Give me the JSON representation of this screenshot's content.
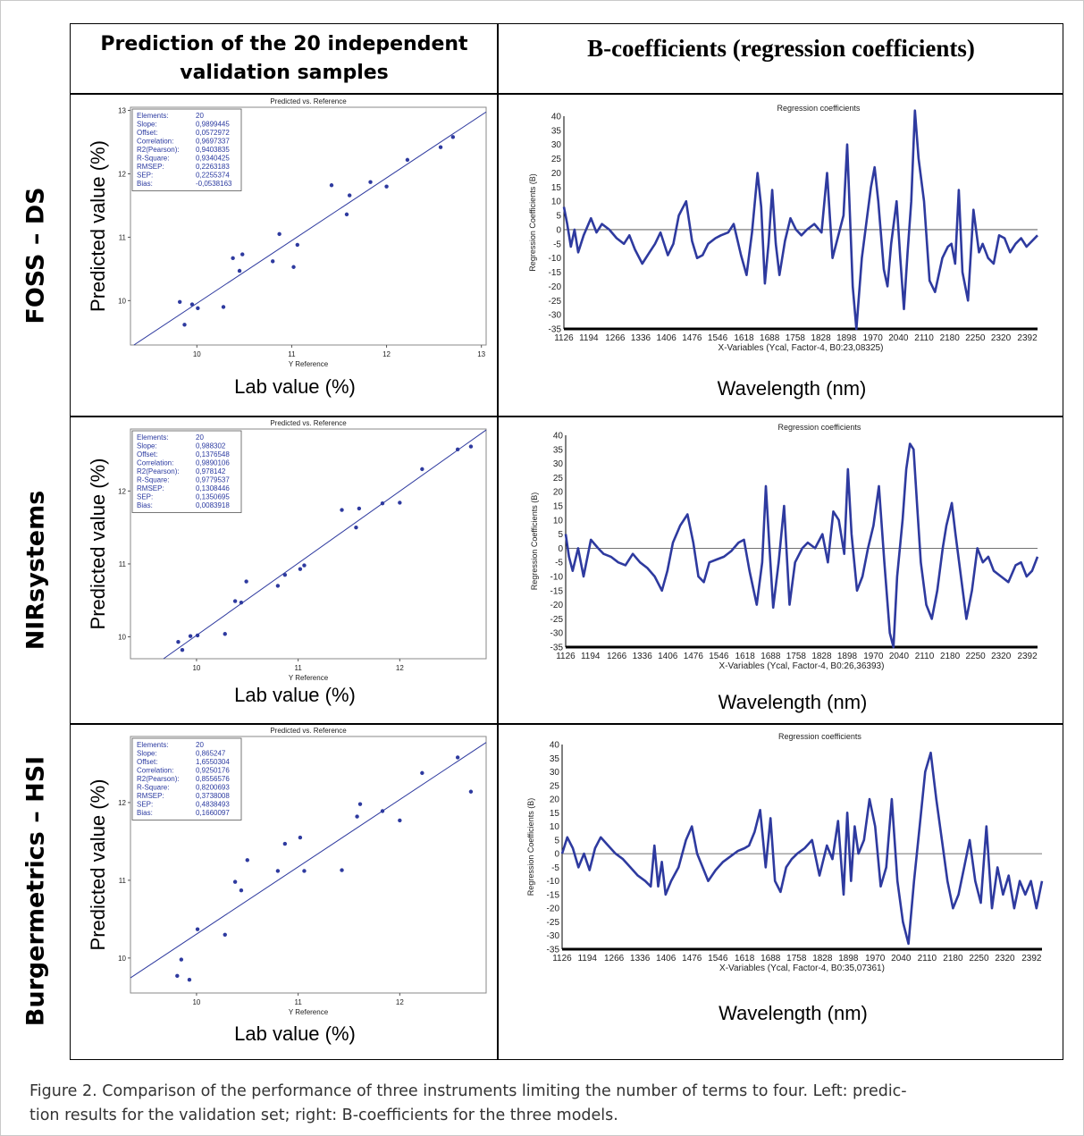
{
  "headers": {
    "left_line1": "Prediction of the 20 independent",
    "left_line2": "validation samples",
    "right": "B-coefficients (regression coefficients)"
  },
  "row_labels": [
    "FOSS – DS",
    "NIRsystems",
    "Burgermetrics – HSI"
  ],
  "caption": {
    "line1": "Figure 2. Comparison of the performance of three instruments limiting the number of terms to four. Left: predic-",
    "line2": "tion results for the validation set; right: B-coefficients for the three models."
  },
  "colors": {
    "series": "#2e3a9f",
    "stats_text": "#2b3aa0",
    "axis": "#000000",
    "frame": "#c9c9c9"
  },
  "chart_data": [
    {
      "type": "scatter",
      "instrument": "FOSS – DS",
      "title": "Predicted vs. Reference",
      "xlabel": "Y Reference",
      "ylabel": "Predicted value (%)",
      "outer_xlabel": "Lab value (%)",
      "xlim": [
        9.3,
        13.05
      ],
      "ylim": [
        9.3,
        13.05
      ],
      "xticks": [
        10,
        11,
        12,
        13
      ],
      "yticks": [
        10,
        11,
        12,
        13
      ],
      "fit_line": {
        "slope": 0.9899445,
        "offset": 0.0572972
      },
      "stats": [
        [
          "Elements:",
          "20"
        ],
        [
          "Slope:",
          "0,9899445"
        ],
        [
          "Offset:",
          "0,0572972"
        ],
        [
          "Correlation:",
          "0,9697337"
        ],
        [
          "R2(Pearson):",
          "0,9403835"
        ],
        [
          "R-Square:",
          "0,9340425"
        ],
        [
          "RMSEP:",
          "0,2263183"
        ],
        [
          "SEP:",
          "0,2255374"
        ],
        [
          "Bias:",
          "-0,0538163"
        ]
      ],
      "points": [
        [
          9.82,
          9.98
        ],
        [
          9.87,
          9.62
        ],
        [
          9.95,
          9.94
        ],
        [
          10.01,
          9.88
        ],
        [
          10.28,
          9.9
        ],
        [
          10.38,
          10.67
        ],
        [
          10.45,
          10.47
        ],
        [
          10.48,
          10.73
        ],
        [
          10.8,
          10.62
        ],
        [
          10.87,
          11.05
        ],
        [
          11.02,
          10.53
        ],
        [
          11.06,
          10.88
        ],
        [
          11.42,
          11.82
        ],
        [
          11.58,
          11.36
        ],
        [
          11.61,
          11.66
        ],
        [
          11.83,
          11.87
        ],
        [
          12.0,
          11.8
        ],
        [
          12.22,
          12.22
        ],
        [
          12.57,
          12.42
        ],
        [
          12.7,
          12.58
        ]
      ]
    },
    {
      "type": "scatter",
      "instrument": "NIRsystems",
      "title": "Predicted vs. Reference",
      "xlabel": "Y Reference",
      "ylabel": "Predicted value (%)",
      "outer_xlabel": "Lab value (%)",
      "xlim": [
        9.35,
        12.85
      ],
      "ylim": [
        9.7,
        12.85
      ],
      "xticks": [
        10,
        11,
        12
      ],
      "yticks": [
        10,
        11,
        12
      ],
      "fit_line": {
        "slope": 0.988302,
        "offset": 0.1376548
      },
      "stats": [
        [
          "Elements:",
          "20"
        ],
        [
          "Slope:",
          "0,988302"
        ],
        [
          "Offset:",
          "0,1376548"
        ],
        [
          "Correlation:",
          "0,9890106"
        ],
        [
          "R2(Pearson):",
          "0,978142"
        ],
        [
          "R-Square:",
          "0,9779537"
        ],
        [
          "RMSEP:",
          "0,1308446"
        ],
        [
          "SEP:",
          "0,1350695"
        ],
        [
          "Bias:",
          "0,0083918"
        ]
      ],
      "points": [
        [
          9.82,
          9.93
        ],
        [
          9.86,
          9.82
        ],
        [
          9.94,
          10.01
        ],
        [
          10.01,
          10.02
        ],
        [
          10.28,
          10.04
        ],
        [
          10.38,
          10.49
        ],
        [
          10.44,
          10.47
        ],
        [
          10.49,
          10.76
        ],
        [
          10.8,
          10.7
        ],
        [
          10.87,
          10.85
        ],
        [
          11.02,
          10.93
        ],
        [
          11.06,
          10.98
        ],
        [
          11.43,
          11.74
        ],
        [
          11.57,
          11.5
        ],
        [
          11.6,
          11.76
        ],
        [
          11.83,
          11.83
        ],
        [
          12.0,
          11.84
        ],
        [
          12.22,
          12.3
        ],
        [
          12.57,
          12.57
        ],
        [
          12.7,
          12.61
        ]
      ]
    },
    {
      "type": "scatter",
      "instrument": "Burgermetrics – HSI",
      "title": "Predicted vs. Reference",
      "xlabel": "Y Reference",
      "ylabel": "Predicted value (%)",
      "outer_xlabel": "Lab value (%)",
      "xlim": [
        9.35,
        12.85
      ],
      "ylim": [
        9.55,
        12.85
      ],
      "xticks": [
        10,
        11,
        12
      ],
      "yticks": [
        10,
        11,
        12
      ],
      "fit_line": {
        "slope": 0.865247,
        "offset": 1.6550304
      },
      "stats": [
        [
          "Elements:",
          "20"
        ],
        [
          "Slope:",
          "0,865247"
        ],
        [
          "Offset:",
          "1,6550304"
        ],
        [
          "Correlation:",
          "0,9250176"
        ],
        [
          "R2(Pearson):",
          "0,8556576"
        ],
        [
          "R-Square:",
          "0,8200693"
        ],
        [
          "RMSEP:",
          "0,3738008"
        ],
        [
          "SEP:",
          "0,4838493"
        ],
        [
          "Bias:",
          "0,1660097"
        ]
      ],
      "points": [
        [
          9.81,
          9.77
        ],
        [
          9.85,
          9.98
        ],
        [
          9.93,
          9.72
        ],
        [
          10.01,
          10.37
        ],
        [
          10.28,
          10.3
        ],
        [
          10.38,
          10.98
        ],
        [
          10.44,
          10.87
        ],
        [
          10.5,
          11.26
        ],
        [
          10.8,
          11.12
        ],
        [
          10.87,
          11.47
        ],
        [
          11.02,
          11.55
        ],
        [
          11.06,
          11.12
        ],
        [
          11.43,
          11.13
        ],
        [
          11.58,
          11.82
        ],
        [
          11.61,
          11.98
        ],
        [
          11.83,
          11.89
        ],
        [
          12.0,
          11.77
        ],
        [
          12.22,
          12.38
        ],
        [
          12.57,
          12.58
        ],
        [
          12.7,
          12.14
        ]
      ]
    },
    {
      "type": "line",
      "instrument": "FOSS – DS",
      "title": "Regression coefficients",
      "xlabel": "X-Variables (Ycal, Factor-4, B0:23,08325)",
      "ylabel": "Regression Coefficients (B)",
      "outer_xlabel": "Wavelength (nm)",
      "xlim": [
        1126,
        2420
      ],
      "ylim": [
        -35,
        40
      ],
      "xticks": [
        1126,
        1194,
        1266,
        1336,
        1406,
        1476,
        1546,
        1618,
        1688,
        1758,
        1828,
        1898,
        1970,
        2040,
        2110,
        2180,
        2250,
        2320,
        2392
      ],
      "yticks": [
        -35,
        -30,
        -25,
        -20,
        -15,
        -10,
        -5,
        0,
        5,
        10,
        15,
        20,
        25,
        30,
        35,
        40
      ],
      "x": [
        1126,
        1135,
        1145,
        1155,
        1165,
        1180,
        1200,
        1215,
        1230,
        1250,
        1270,
        1290,
        1305,
        1320,
        1340,
        1360,
        1375,
        1390,
        1410,
        1425,
        1440,
        1460,
        1476,
        1490,
        1505,
        1520,
        1540,
        1555,
        1575,
        1590,
        1610,
        1625,
        1640,
        1655,
        1665,
        1675,
        1685,
        1695,
        1705,
        1715,
        1730,
        1745,
        1760,
        1775,
        1790,
        1810,
        1830,
        1845,
        1860,
        1870,
        1880,
        1890,
        1900,
        1915,
        1925,
        1940,
        1955,
        1965,
        1975,
        1985,
        2000,
        2010,
        2020,
        2035,
        2045,
        2055,
        2065,
        2075,
        2085,
        2095,
        2110,
        2125,
        2140,
        2150,
        2160,
        2175,
        2185,
        2195,
        2205,
        2215,
        2230,
        2245,
        2260,
        2270,
        2285,
        2300,
        2315,
        2330,
        2345,
        2360,
        2375,
        2390,
        2405,
        2420
      ],
      "values": [
        8,
        2,
        -6,
        0,
        -8,
        -2,
        4,
        -1,
        2,
        0,
        -3,
        -5,
        -2,
        -7,
        -12,
        -8,
        -5,
        -1,
        -9,
        -5,
        5,
        10,
        -4,
        -10,
        -9,
        -5,
        -3,
        -2,
        -1,
        2,
        -9,
        -16,
        -1,
        20,
        8,
        -19,
        -5,
        14,
        -5,
        -16,
        -4,
        4,
        0,
        -2,
        0,
        2,
        -1,
        20,
        -10,
        -5,
        0,
        5,
        30,
        -20,
        -35,
        -10,
        5,
        15,
        22,
        10,
        -14,
        -20,
        -5,
        10,
        -10,
        -28,
        -8,
        10,
        42,
        25,
        10,
        -18,
        -22,
        -16,
        -10,
        -6,
        -5,
        -12,
        14,
        -15,
        -25,
        7,
        -8,
        -5,
        -10,
        -12,
        -2,
        -3,
        -8,
        -5,
        -3,
        -6,
        -4,
        -2
      ]
    },
    {
      "type": "line",
      "instrument": "NIRsystems",
      "title": "Regression coefficients",
      "xlabel": "X-Variables (Ycal, Factor-4, B0:26,36393)",
      "ylabel": "Regression Coefficients (B)",
      "outer_xlabel": "Wavelength (nm)",
      "xlim": [
        1126,
        2420
      ],
      "ylim": [
        -35,
        40
      ],
      "xticks": [
        1126,
        1194,
        1266,
        1336,
        1406,
        1476,
        1546,
        1618,
        1688,
        1758,
        1828,
        1898,
        1970,
        2040,
        2110,
        2180,
        2250,
        2320,
        2392
      ],
      "yticks": [
        -35,
        -30,
        -25,
        -20,
        -15,
        -10,
        -5,
        0,
        5,
        10,
        15,
        20,
        25,
        30,
        35,
        40
      ],
      "x": [
        1126,
        1135,
        1145,
        1160,
        1175,
        1195,
        1215,
        1230,
        1250,
        1270,
        1290,
        1310,
        1330,
        1350,
        1370,
        1390,
        1405,
        1420,
        1440,
        1460,
        1476,
        1490,
        1505,
        1520,
        1540,
        1560,
        1580,
        1600,
        1615,
        1630,
        1650,
        1665,
        1675,
        1685,
        1695,
        1710,
        1725,
        1740,
        1755,
        1775,
        1790,
        1810,
        1830,
        1845,
        1860,
        1875,
        1890,
        1900,
        1910,
        1925,
        1940,
        1955,
        1970,
        1985,
        2000,
        2015,
        2025,
        2035,
        2050,
        2060,
        2070,
        2080,
        2090,
        2100,
        2115,
        2130,
        2145,
        2160,
        2170,
        2185,
        2195,
        2210,
        2225,
        2240,
        2255,
        2270,
        2285,
        2300,
        2320,
        2340,
        2360,
        2375,
        2390,
        2405,
        2420
      ],
      "values": [
        5,
        -3,
        -8,
        0,
        -10,
        3,
        0,
        -2,
        -3,
        -5,
        -6,
        -2,
        -5,
        -7,
        -10,
        -15,
        -8,
        2,
        8,
        12,
        2,
        -10,
        -12,
        -5,
        -4,
        -3,
        -1,
        2,
        3,
        -8,
        -20,
        -5,
        22,
        0,
        -21,
        -5,
        15,
        -20,
        -5,
        0,
        2,
        0,
        5,
        -5,
        13,
        10,
        -2,
        28,
        5,
        -15,
        -10,
        0,
        8,
        22,
        -5,
        -30,
        -35,
        -10,
        10,
        28,
        37,
        35,
        15,
        -5,
        -20,
        -25,
        -15,
        0,
        8,
        16,
        5,
        -10,
        -25,
        -15,
        0,
        -5,
        -3,
        -8,
        -10,
        -12,
        -6,
        -5,
        -10,
        -8,
        -3
      ]
    },
    {
      "type": "line",
      "instrument": "Burgermetrics – HSI",
      "title": "Regression coefficients",
      "xlabel": "X-Variables (Ycal, Factor-4, B0:35,07361)",
      "ylabel": "Regression Coefficients (B)",
      "outer_xlabel": "Wavelength (nm)",
      "xlim": [
        1126,
        2420
      ],
      "ylim": [
        -35,
        40
      ],
      "xticks": [
        1126,
        1194,
        1266,
        1336,
        1406,
        1476,
        1546,
        1618,
        1688,
        1758,
        1828,
        1898,
        1970,
        2040,
        2110,
        2180,
        2250,
        2320,
        2392
      ],
      "yticks": [
        -35,
        -30,
        -25,
        -20,
        -15,
        -10,
        -5,
        0,
        5,
        10,
        15,
        20,
        25,
        30,
        35,
        40
      ],
      "x": [
        1126,
        1140,
        1155,
        1170,
        1185,
        1200,
        1215,
        1230,
        1250,
        1270,
        1290,
        1310,
        1330,
        1350,
        1365,
        1375,
        1385,
        1395,
        1405,
        1420,
        1440,
        1460,
        1476,
        1490,
        1505,
        1520,
        1540,
        1560,
        1580,
        1600,
        1618,
        1630,
        1645,
        1660,
        1675,
        1688,
        1700,
        1715,
        1730,
        1745,
        1760,
        1780,
        1800,
        1820,
        1840,
        1855,
        1870,
        1885,
        1895,
        1905,
        1915,
        1925,
        1940,
        1955,
        1970,
        1985,
        2000,
        2015,
        2030,
        2045,
        2060,
        2075,
        2090,
        2105,
        2120,
        2135,
        2150,
        2165,
        2180,
        2195,
        2210,
        2225,
        2240,
        2255,
        2270,
        2285,
        2300,
        2315,
        2330,
        2345,
        2360,
        2375,
        2390,
        2405,
        2420
      ],
      "values": [
        0,
        6,
        2,
        -5,
        0,
        -6,
        2,
        6,
        3,
        0,
        -2,
        -5,
        -8,
        -10,
        -12,
        3,
        -12,
        -3,
        -15,
        -10,
        -5,
        5,
        10,
        0,
        -5,
        -10,
        -6,
        -3,
        -1,
        1,
        2,
        3,
        8,
        16,
        -5,
        13,
        -10,
        -14,
        -5,
        -2,
        0,
        2,
        5,
        -8,
        3,
        -2,
        12,
        -15,
        15,
        -10,
        10,
        0,
        5,
        20,
        10,
        -12,
        -5,
        20,
        -10,
        -25,
        -33,
        -10,
        10,
        30,
        37,
        20,
        5,
        -10,
        -20,
        -15,
        -5,
        5,
        -10,
        -18,
        10,
        -20,
        -5,
        -15,
        -8,
        -20,
        -10,
        -15,
        -10,
        -20,
        -10
      ]
    }
  ]
}
